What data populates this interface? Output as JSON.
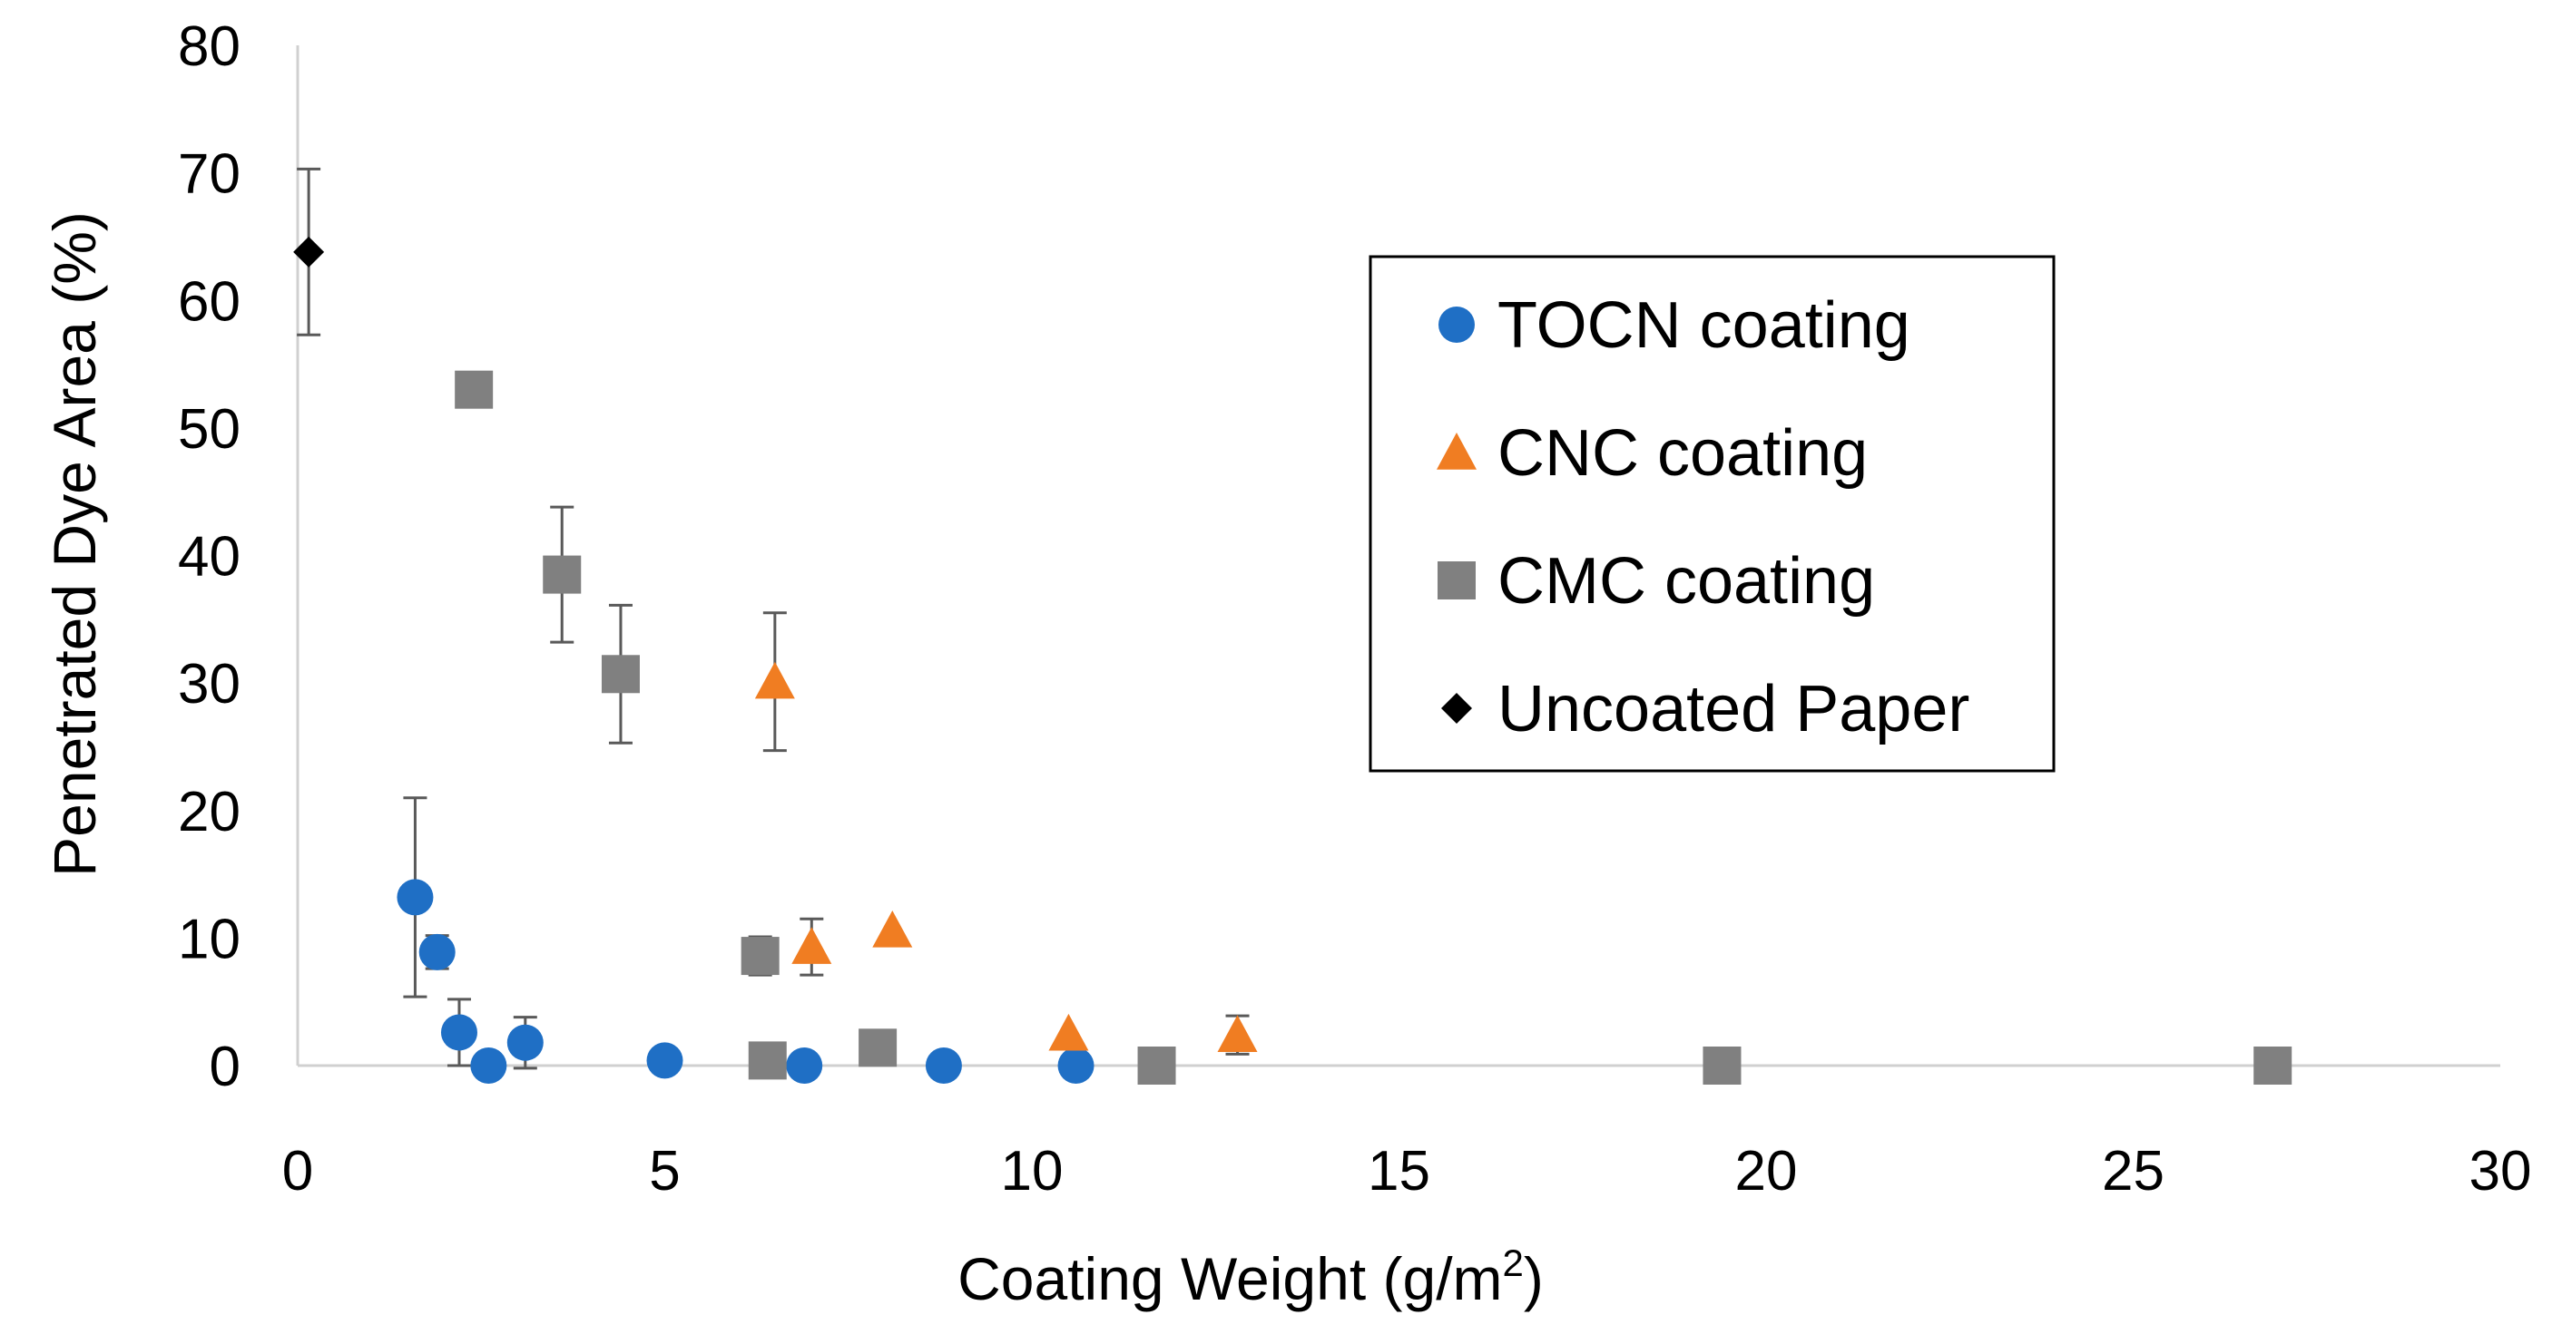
{
  "chart_data": {
    "type": "scatter",
    "title": "",
    "xlabel": "Coating Weight (g/m",
    "xlabel_superscript": "2",
    "xlabel_suffix": ")",
    "ylabel": "Penetrated Dye Area (%)",
    "xlim": [
      0,
      30
    ],
    "ylim": [
      0,
      80
    ],
    "xticks": [
      0,
      5,
      10,
      15,
      20,
      25,
      30
    ],
    "yticks": [
      0,
      10,
      20,
      30,
      40,
      50,
      60,
      70,
      80
    ],
    "grid": false,
    "legend_position": "right",
    "series": [
      {
        "name": "TOCN coating",
        "marker": "circle",
        "color": "#1f6fc5",
        "points": [
          {
            "x": 1.6,
            "y": 13.2,
            "err": 7.8
          },
          {
            "x": 1.9,
            "y": 8.9,
            "err": 1.3
          },
          {
            "x": 2.2,
            "y": 2.6,
            "err": 2.6
          },
          {
            "x": 2.6,
            "y": 0.0,
            "err": 0
          },
          {
            "x": 3.1,
            "y": 1.8,
            "err": 2.0
          },
          {
            "x": 5.0,
            "y": 0.4,
            "err": 0
          },
          {
            "x": 6.9,
            "y": 0.0,
            "err": 0
          },
          {
            "x": 8.8,
            "y": 0.0,
            "err": 0
          },
          {
            "x": 10.6,
            "y": 0.0,
            "err": 0
          }
        ]
      },
      {
        "name": "CNC coating",
        "marker": "triangle",
        "color": "#f07d22",
        "points": [
          {
            "x": 6.5,
            "y": 30.1,
            "err": 5.4
          },
          {
            "x": 7.0,
            "y": 9.3,
            "err": 2.2
          },
          {
            "x": 8.1,
            "y": 10.6,
            "err": 0
          },
          {
            "x": 10.5,
            "y": 2.5,
            "err": 0
          },
          {
            "x": 12.8,
            "y": 2.4,
            "err": 1.5
          }
        ]
      },
      {
        "name": "CMC coating",
        "marker": "square",
        "color": "#808080",
        "points": [
          {
            "x": 2.4,
            "y": 53.0,
            "err": 1.0
          },
          {
            "x": 3.6,
            "y": 38.5,
            "err": 5.3
          },
          {
            "x": 4.4,
            "y": 30.7,
            "err": 5.4
          },
          {
            "x": 6.3,
            "y": 8.6,
            "err": 1.5
          },
          {
            "x": 6.4,
            "y": 0.4,
            "err": 0
          },
          {
            "x": 7.9,
            "y": 1.4,
            "err": 0
          },
          {
            "x": 11.7,
            "y": 0.0,
            "err": 0
          },
          {
            "x": 19.4,
            "y": 0.0,
            "err": 0
          },
          {
            "x": 26.9,
            "y": 0.0,
            "err": 0
          }
        ]
      },
      {
        "name": "Uncoated Paper",
        "marker": "diamond",
        "color": "#000000",
        "points": [
          {
            "x": 0.15,
            "y": 63.8,
            "err": 6.5
          }
        ]
      }
    ]
  }
}
